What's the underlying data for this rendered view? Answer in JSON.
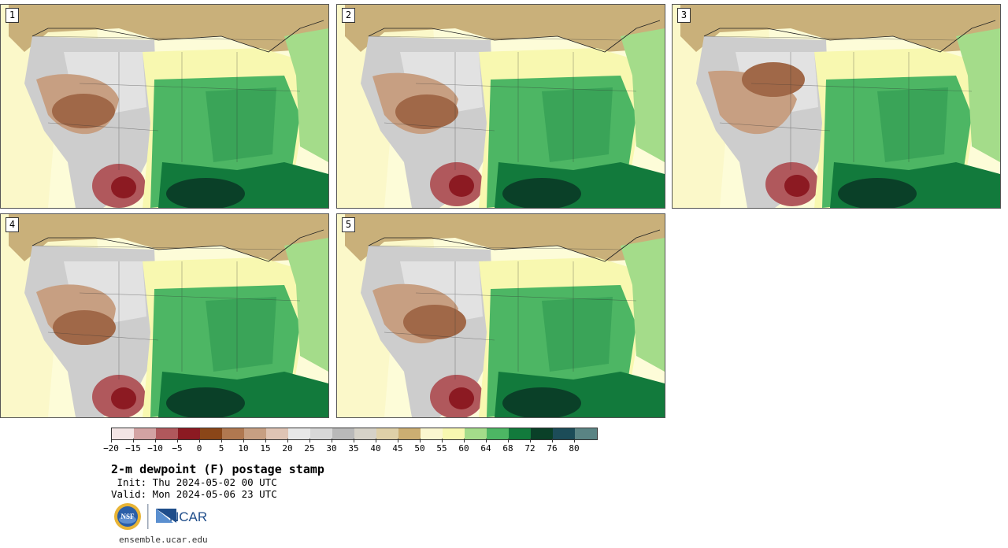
{
  "panels": [
    {
      "label": "1"
    },
    {
      "label": "2"
    },
    {
      "label": "3"
    },
    {
      "label": "4"
    },
    {
      "label": "5"
    }
  ],
  "colorbar": {
    "colors": [
      "#f3e5e5",
      "#d3a3a3",
      "#b0585c",
      "#8c1a22",
      "#8a4618",
      "#b07850",
      "#c79f82",
      "#dfc4b4",
      "#e8e8e8",
      "#d8d8d8",
      "#b9b9b9",
      "#d6d2c8",
      "#dfd0a8",
      "#ccae72",
      "#fbf7d0",
      "#f8f8b0",
      "#a4dc8a",
      "#4db664",
      "#127a3c",
      "#0a4028",
      "#1c4c58",
      "#5a8484"
    ],
    "tick_labels": [
      "−20",
      "−15",
      "−10",
      "−5",
      "0",
      "5",
      "10",
      "15",
      "20",
      "25",
      "30",
      "35",
      "40",
      "45",
      "50",
      "55",
      "60",
      "64",
      "68",
      "72",
      "76",
      "80"
    ]
  },
  "title": "2-m dewpoint (F) postage stamp",
  "init": " Init: Thu 2024-05-02 00 UTC",
  "valid": "Valid: Mon 2024-05-06 23 UTC",
  "logos": {
    "nsf": "NSF",
    "ncar": "NCAR"
  },
  "url": "ensemble.ucar.edu"
}
